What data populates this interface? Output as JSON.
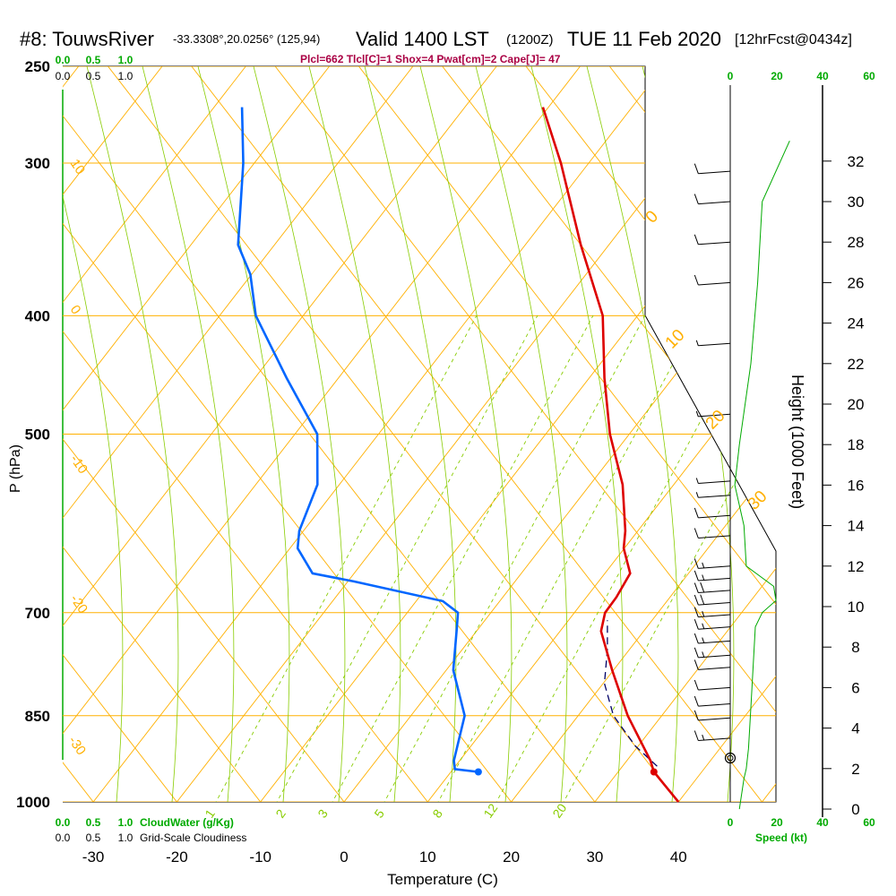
{
  "header": {
    "station": "#8: TouwsRiver",
    "coords": "-33.3308°,20.0256° (125,94)",
    "valid": "Valid 1400 LST",
    "valid_utc": "(1200Z)",
    "date": "TUE 11 Feb 2020",
    "forecast": "[12hrFcst@0434z]",
    "indices": "Plcl=662 Tlcl[C]=1 Shox=4 Pwat[cm]=2 Cape[J]= 47"
  },
  "axes": {
    "xlabel": "Temperature (C)",
    "ylabel": "P (hPa)",
    "ylabel_right": "Height (1000 Feet)",
    "speed_label": "Speed (kt)",
    "cloudwater_label": "CloudWater (g/Kg)",
    "cloudiness_label": "Grid-Scale Cloudiness"
  },
  "colors": {
    "temperature": "#dd0000",
    "dewpoint": "#0066ff",
    "parcel": "#000066",
    "isotherm": "#ffb000",
    "dry_adiabat": "#88cc00",
    "mixing_ratio": "#88cc00",
    "wind_speed": "#00aa00",
    "indices": "#aa0044"
  },
  "chart_data": {
    "type": "line",
    "title": "#8: TouwsRiver  -33.3308°,20.0256° (125,94)  Valid 1400 LST (1200Z) TUE 11 Feb 2020 [12hrFcst@0434z]",
    "xlabel": "Temperature (C)",
    "ylabel": "P (hPa)",
    "xlim": [
      -35,
      45
    ],
    "ylim": [
      1000,
      250
    ],
    "x_ticks": [
      "-30",
      "-20",
      "-10",
      "0",
      "10",
      "20",
      "30",
      "40"
    ],
    "p_ticks": [
      "250",
      "300",
      "400",
      "500",
      "700",
      "850",
      "1000"
    ],
    "height_ticks": [
      "0",
      "2",
      "4",
      "6",
      "8",
      "10",
      "12",
      "14",
      "16",
      "18",
      "20",
      "22",
      "24",
      "26",
      "28",
      "30",
      "32"
    ],
    "speed_ticks": [
      "0",
      "20",
      "40",
      "60"
    ],
    "cloud_ticks": [
      "0.0",
      "0.5",
      "1.0"
    ],
    "isotherm_labels": [
      "10",
      "0",
      "-10",
      "-20",
      "-30"
    ],
    "isotherm_labels_right": [
      "0",
      "10",
      "20",
      "30"
    ],
    "mixing_ratio_labels": [
      "1",
      "2",
      "3",
      "5",
      "8",
      "12",
      "20"
    ],
    "series": [
      {
        "key": "temperature",
        "points": [
          [
            1000,
            40
          ],
          [
            945,
            35
          ],
          [
            925,
            33.8
          ],
          [
            850,
            28
          ],
          [
            780,
            23
          ],
          [
            725,
            19
          ],
          [
            700,
            18.2
          ],
          [
            680,
            18.5
          ],
          [
            650,
            18.5
          ],
          [
            620,
            16
          ],
          [
            600,
            15
          ],
          [
            550,
            11.5
          ],
          [
            500,
            6.5
          ],
          [
            450,
            2
          ],
          [
            400,
            -2.5
          ],
          [
            350,
            -10
          ],
          [
            300,
            -18
          ],
          [
            270,
            -24
          ]
        ]
      },
      {
        "key": "dewpoint",
        "points": [
          [
            945,
            14
          ],
          [
            940,
            11
          ],
          [
            925,
            10.3
          ],
          [
            850,
            8.5
          ],
          [
            780,
            4
          ],
          [
            720,
            1.5
          ],
          [
            700,
            0.6
          ],
          [
            685,
            -2
          ],
          [
            660,
            -14
          ],
          [
            650,
            -19.5
          ],
          [
            620,
            -23
          ],
          [
            600,
            -24
          ],
          [
            550,
            -25
          ],
          [
            500,
            -28.5
          ],
          [
            450,
            -36
          ],
          [
            400,
            -44
          ],
          [
            370,
            -47.5
          ],
          [
            350,
            -51
          ],
          [
            300,
            -56
          ],
          [
            270,
            -60
          ]
        ]
      },
      {
        "key": "parcel",
        "points": [
          [
            935,
            35
          ],
          [
            900,
            31
          ],
          [
            850,
            26.3
          ],
          [
            800,
            23
          ],
          [
            750,
            21
          ],
          [
            710,
            19
          ]
        ]
      }
    ],
    "surface": {
      "pressure": 945,
      "temperature": 35,
      "dewpoint": 14
    },
    "wind_speed_profile": [
      [
        0,
        4
      ],
      [
        1.5,
        6
      ],
      [
        2,
        7
      ],
      [
        3,
        8
      ],
      [
        5,
        9
      ],
      [
        7,
        10
      ],
      [
        9,
        11
      ],
      [
        9.7,
        14
      ],
      [
        10.3,
        20
      ],
      [
        11,
        19
      ],
      [
        12,
        7
      ],
      [
        14,
        6
      ],
      [
        16,
        2
      ],
      [
        18,
        4
      ],
      [
        22,
        9
      ],
      [
        26,
        12
      ],
      [
        30,
        14
      ],
      [
        33,
        26
      ]
    ],
    "wind_barbs": [
      {
        "h": 3.5,
        "kt": 15
      },
      {
        "h": 4.5,
        "kt": 10
      },
      {
        "h": 5.2,
        "kt": 10
      },
      {
        "h": 6,
        "kt": 10
      },
      {
        "h": 7,
        "kt": 10
      },
      {
        "h": 7.6,
        "kt": 15
      },
      {
        "h": 8.3,
        "kt": 15
      },
      {
        "h": 9,
        "kt": 15
      },
      {
        "h": 9.6,
        "kt": 15
      },
      {
        "h": 10.2,
        "kt": 20
      },
      {
        "h": 10.8,
        "kt": 20
      },
      {
        "h": 11.4,
        "kt": 15
      },
      {
        "h": 12,
        "kt": 15
      },
      {
        "h": 13.5,
        "kt": 10
      },
      {
        "h": 14.5,
        "kt": 10
      },
      {
        "h": 15.5,
        "kt": 5
      },
      {
        "h": 16.2,
        "kt": 5
      },
      {
        "h": 19.5,
        "kt": 5
      },
      {
        "h": 23,
        "kt": 5
      },
      {
        "h": 26,
        "kt": 10
      },
      {
        "h": 28,
        "kt": 10
      },
      {
        "h": 30,
        "kt": 10
      },
      {
        "h": 31.5,
        "kt": 10
      }
    ],
    "grid": true
  }
}
